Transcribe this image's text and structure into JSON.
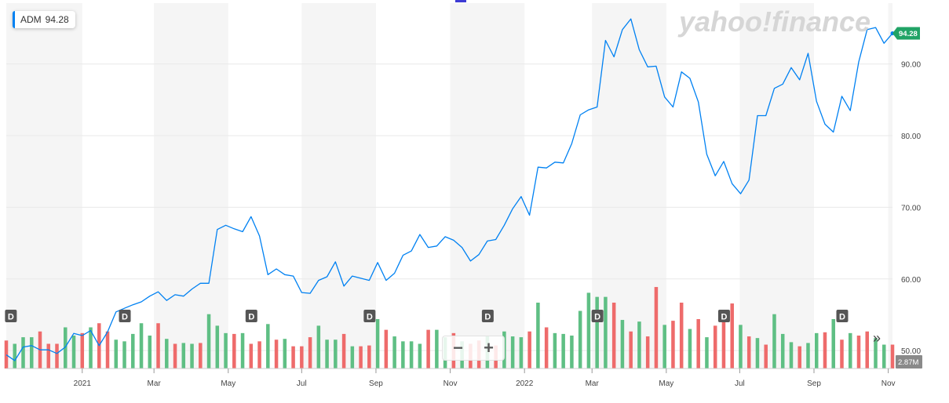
{
  "legend": {
    "symbol": "ADM",
    "value": "94.28",
    "color": "#0081f2"
  },
  "watermark": {
    "text": "yahoo!finance"
  },
  "controls": {
    "zoom_out": "−",
    "zoom_in": "+",
    "more": "»"
  },
  "chart_data": {
    "type": "line",
    "series": [
      {
        "name": "ADM",
        "color": "#0081f2",
        "values": [
          49.4,
          48.6,
          50.5,
          50.7,
          50.1,
          50.1,
          49.6,
          50.5,
          52.4,
          52.1,
          52.8,
          50.7,
          52.6,
          55.4,
          55.9,
          56.4,
          56.8,
          57.6,
          58.2,
          57.0,
          57.8,
          57.6,
          58.6,
          59.4,
          59.4,
          66.9,
          67.5,
          67.0,
          66.6,
          68.7,
          66.0,
          60.6,
          61.4,
          60.6,
          60.4,
          58.1,
          58.0,
          59.8,
          60.3,
          62.4,
          59.0,
          60.4,
          60.1,
          59.8,
          62.3,
          59.8,
          60.8,
          63.3,
          63.9,
          66.2,
          64.4,
          64.6,
          65.9,
          65.4,
          64.4,
          62.5,
          63.4,
          65.3,
          65.5,
          67.5,
          69.8,
          71.5,
          68.9,
          75.6,
          75.5,
          76.3,
          76.2,
          78.9,
          82.9,
          83.6,
          84.0,
          93.3,
          91.0,
          94.8,
          96.3,
          92.0,
          89.6,
          89.7,
          85.4,
          84.0,
          88.9,
          88.0,
          84.7,
          77.4,
          74.4,
          76.4,
          73.3,
          71.9,
          73.8,
          82.8,
          82.8,
          86.6,
          87.2,
          89.5,
          87.8,
          91.5,
          84.8,
          81.6,
          80.5,
          85.5,
          83.5,
          90.3,
          94.8,
          95.1,
          92.9,
          94.28
        ]
      }
    ],
    "last_value_label": "94.28",
    "y_ticks": [
      "50.00",
      "60.00",
      "70.00",
      "80.00",
      "90.00"
    ],
    "ylim": [
      47.5,
      98.5
    ],
    "x_ticks": [
      {
        "label": "2021",
        "week": 9
      },
      {
        "label": "Mar",
        "week": 17.5
      },
      {
        "label": "May",
        "week": 26.3
      },
      {
        "label": "Jul",
        "week": 35
      },
      {
        "label": "Sep",
        "week": 43.8
      },
      {
        "label": "Nov",
        "week": 52.6
      },
      {
        "label": "2022",
        "week": 61.4
      },
      {
        "label": "Mar",
        "week": 69.4
      },
      {
        "label": "May",
        "week": 78.2
      },
      {
        "label": "Jul",
        "week": 86.9
      },
      {
        "label": "Sep",
        "week": 95.7
      },
      {
        "label": "Nov",
        "week": 104.5
      }
    ],
    "volume": {
      "label": "2.87M",
      "values": [
        0.34,
        0.3,
        0.38,
        0.38,
        0.45,
        0.3,
        0.3,
        0.5,
        0.4,
        0.43,
        0.5,
        0.55,
        0.45,
        0.35,
        0.33,
        0.42,
        0.55,
        0.4,
        0.55,
        0.36,
        0.3,
        0.31,
        0.3,
        0.31,
        0.66,
        0.52,
        0.43,
        0.42,
        0.43,
        0.3,
        0.33,
        0.54,
        0.35,
        0.36,
        0.27,
        0.27,
        0.38,
        0.52,
        0.35,
        0.35,
        0.42,
        0.27,
        0.27,
        0.28,
        0.6,
        0.47,
        0.39,
        0.33,
        0.33,
        0.3,
        0.47,
        0.47,
        0.38,
        0.43,
        0.33,
        0.3,
        0.34,
        0.4,
        0.28,
        0.45,
        0.39,
        0.38,
        0.45,
        0.8,
        0.5,
        0.43,
        0.42,
        0.4,
        0.7,
        0.92,
        0.87,
        0.87,
        0.8,
        0.59,
        0.45,
        0.57,
        0.39,
        0.99,
        0.53,
        0.58,
        0.8,
        0.48,
        0.6,
        0.38,
        0.52,
        0.68,
        0.79,
        0.53,
        0.39,
        0.37,
        0.29,
        0.66,
        0.42,
        0.32,
        0.27,
        0.31,
        0.43,
        0.44,
        0.6,
        0.35,
        0.43,
        0.4,
        0.45,
        0.37,
        0.29,
        0.29
      ],
      "colors": [
        "r",
        "g",
        "g",
        "g",
        "r",
        "r",
        "r",
        "g",
        "g",
        "r",
        "g",
        "r",
        "r",
        "g",
        "g",
        "g",
        "g",
        "g",
        "r",
        "g",
        "r",
        "g",
        "g",
        "r",
        "g",
        "g",
        "g",
        "r",
        "g",
        "r",
        "r",
        "g",
        "r",
        "g",
        "r",
        "r",
        "r",
        "g",
        "g",
        "g",
        "r",
        "g",
        "r",
        "r",
        "g",
        "r",
        "g",
        "g",
        "g",
        "g",
        "r",
        "g",
        "g",
        "r",
        "g",
        "r",
        "r",
        "g",
        "r",
        "g",
        "g",
        "g",
        "r",
        "g",
        "r",
        "g",
        "g",
        "g",
        "g",
        "g",
        "g",
        "g",
        "r",
        "g",
        "r",
        "g",
        "r",
        "r",
        "g",
        "r",
        "r",
        "g",
        "r",
        "g",
        "r",
        "r",
        "r",
        "g",
        "r",
        "g",
        "r",
        "g",
        "g",
        "g",
        "r",
        "g",
        "g",
        "r",
        "g",
        "r",
        "g",
        "r",
        "r",
        "g",
        "g",
        "r"
      ],
      "up_color": "#5fbf84",
      "down_color": "#ee6b6b"
    },
    "events": [
      {
        "label": "D",
        "week": 0.5
      },
      {
        "label": "D",
        "week": 14
      },
      {
        "label": "D",
        "week": 29
      },
      {
        "label": "D",
        "week": 43
      },
      {
        "label": "D",
        "week": 57
      },
      {
        "label": "D",
        "week": 70
      },
      {
        "label": "D",
        "week": 85
      },
      {
        "label": "D",
        "week": 99
      }
    ],
    "shaded_bands": [
      [
        0,
        9
      ],
      [
        17.5,
        26.3
      ],
      [
        35,
        43.8
      ],
      [
        52.6,
        61.4
      ],
      [
        69.4,
        78.2
      ],
      [
        86.9,
        95.7
      ],
      [
        104.5,
        105
      ]
    ]
  }
}
